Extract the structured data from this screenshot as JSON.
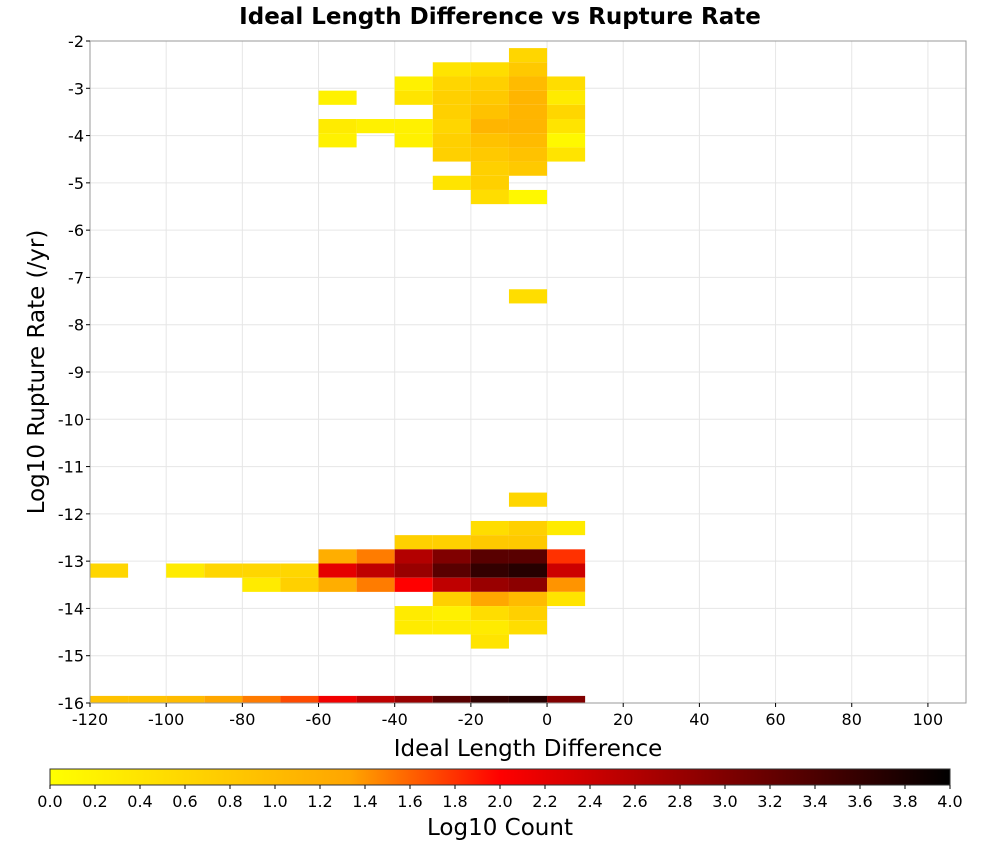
{
  "chart_data": {
    "type": "heatmap",
    "title": "Ideal Length Difference vs Rupture Rate",
    "xlabel": "Ideal Length Difference",
    "ylabel": "Log10 Rupture Rate (/yr)",
    "colorbar_label": "Log10 Count",
    "xlim": [
      -120,
      110
    ],
    "ylim": [
      -16,
      -2
    ],
    "x_ticks": [
      "-120",
      "-100",
      "-80",
      "-60",
      "-40",
      "-20",
      "0",
      "20",
      "40",
      "60",
      "80",
      "100"
    ],
    "x_tick_values": [
      -120,
      -100,
      -80,
      -60,
      -40,
      -20,
      0,
      20,
      40,
      60,
      80,
      100
    ],
    "y_ticks": [
      "-2",
      "-3",
      "-4",
      "-5",
      "-6",
      "-7",
      "-8",
      "-9",
      "-10",
      "-11",
      "-12",
      "-13",
      "-14",
      "-15",
      "-16"
    ],
    "y_tick_values": [
      -2,
      -3,
      -4,
      -5,
      -6,
      -7,
      -8,
      -9,
      -10,
      -11,
      -12,
      -13,
      -14,
      -15,
      -16
    ],
    "colorbar_ticks": [
      "0.0",
      "0.2",
      "0.4",
      "0.6",
      "0.8",
      "1.0",
      "1.2",
      "1.4",
      "1.6",
      "1.8",
      "2.0",
      "2.2",
      "2.4",
      "2.6",
      "2.8",
      "3.0",
      "3.2",
      "3.4",
      "3.6",
      "3.8",
      "4.0"
    ],
    "colorbar_range": [
      0,
      4
    ],
    "colorscale": [
      "#ffff00",
      "#ffa500",
      "#ff0000",
      "#000000"
    ],
    "grid": true,
    "bin_width": 10,
    "y_bin_height": 0.3,
    "cells": [
      {
        "x": -10,
        "y": -2.3,
        "v": 0.6
      },
      {
        "x": -30,
        "y": -2.6,
        "v": 0.4
      },
      {
        "x": -20,
        "y": -2.6,
        "v": 0.5
      },
      {
        "x": -10,
        "y": -2.6,
        "v": 0.8
      },
      {
        "x": -40,
        "y": -2.9,
        "v": 0.2
      },
      {
        "x": -30,
        "y": -2.9,
        "v": 0.6
      },
      {
        "x": -20,
        "y": -2.9,
        "v": 0.7
      },
      {
        "x": -10,
        "y": -2.9,
        "v": 1.0
      },
      {
        "x": 0,
        "y": -2.9,
        "v": 0.5
      },
      {
        "x": -60,
        "y": -3.2,
        "v": 0.2
      },
      {
        "x": -40,
        "y": -3.2,
        "v": 0.4
      },
      {
        "x": -30,
        "y": -3.2,
        "v": 0.7
      },
      {
        "x": -20,
        "y": -3.2,
        "v": 0.8
      },
      {
        "x": -10,
        "y": -3.2,
        "v": 1.1
      },
      {
        "x": 0,
        "y": -3.2,
        "v": 0.3
      },
      {
        "x": -30,
        "y": -3.5,
        "v": 0.7
      },
      {
        "x": -20,
        "y": -3.5,
        "v": 0.9
      },
      {
        "x": -10,
        "y": -3.5,
        "v": 1.1
      },
      {
        "x": 0,
        "y": -3.5,
        "v": 0.6
      },
      {
        "x": -60,
        "y": -3.8,
        "v": 0.3
      },
      {
        "x": -50,
        "y": -3.8,
        "v": 0.2
      },
      {
        "x": -40,
        "y": -3.8,
        "v": 0.2
      },
      {
        "x": -30,
        "y": -3.8,
        "v": 0.6
      },
      {
        "x": -20,
        "y": -3.8,
        "v": 1.1
      },
      {
        "x": -10,
        "y": -3.8,
        "v": 1.1
      },
      {
        "x": 0,
        "y": -3.8,
        "v": 0.4
      },
      {
        "x": -60,
        "y": -4.1,
        "v": 0.2
      },
      {
        "x": -40,
        "y": -4.1,
        "v": 0.2
      },
      {
        "x": -30,
        "y": -4.1,
        "v": 0.7
      },
      {
        "x": -20,
        "y": -4.1,
        "v": 0.9
      },
      {
        "x": -10,
        "y": -4.1,
        "v": 1.0
      },
      {
        "x": 0,
        "y": -4.1,
        "v": 0.1
      },
      {
        "x": -30,
        "y": -4.4,
        "v": 0.7
      },
      {
        "x": -20,
        "y": -4.4,
        "v": 0.8
      },
      {
        "x": -10,
        "y": -4.4,
        "v": 0.9
      },
      {
        "x": 0,
        "y": -4.4,
        "v": 0.4
      },
      {
        "x": -10,
        "y": -4.7,
        "v": 0.8
      },
      {
        "x": -20,
        "y": -4.7,
        "v": 0.7
      },
      {
        "x": -30,
        "y": -5.0,
        "v": 0.4
      },
      {
        "x": -20,
        "y": -5.0,
        "v": 0.7
      },
      {
        "x": -20,
        "y": -5.3,
        "v": 0.5
      },
      {
        "x": -10,
        "y": -5.3,
        "v": 0.1
      },
      {
        "x": -10,
        "y": -7.4,
        "v": 0.5
      },
      {
        "x": -10,
        "y": -11.7,
        "v": 0.6
      },
      {
        "x": -20,
        "y": -12.3,
        "v": 0.5
      },
      {
        "x": -10,
        "y": -12.3,
        "v": 0.7
      },
      {
        "x": 0,
        "y": -12.3,
        "v": 0.3
      },
      {
        "x": -40,
        "y": -12.6,
        "v": 0.7
      },
      {
        "x": -30,
        "y": -12.6,
        "v": 0.7
      },
      {
        "x": -20,
        "y": -12.6,
        "v": 0.8
      },
      {
        "x": -10,
        "y": -12.6,
        "v": 0.8
      },
      {
        "x": -60,
        "y": -12.9,
        "v": 1.2
      },
      {
        "x": -50,
        "y": -12.9,
        "v": 1.5
      },
      {
        "x": -40,
        "y": -12.9,
        "v": 2.6
      },
      {
        "x": -30,
        "y": -12.9,
        "v": 3.0
      },
      {
        "x": -20,
        "y": -12.9,
        "v": 3.3
      },
      {
        "x": -10,
        "y": -12.9,
        "v": 3.3
      },
      {
        "x": 0,
        "y": -12.9,
        "v": 1.8
      },
      {
        "x": -120,
        "y": -13.2,
        "v": 0.6
      },
      {
        "x": -100,
        "y": -13.2,
        "v": 0.3
      },
      {
        "x": -90,
        "y": -13.2,
        "v": 0.6
      },
      {
        "x": -80,
        "y": -13.2,
        "v": 0.6
      },
      {
        "x": -70,
        "y": -13.2,
        "v": 0.6
      },
      {
        "x": -60,
        "y": -13.2,
        "v": 2.2
      },
      {
        "x": -50,
        "y": -13.2,
        "v": 2.5
      },
      {
        "x": -40,
        "y": -13.2,
        "v": 2.8
      },
      {
        "x": -30,
        "y": -13.2,
        "v": 3.3
      },
      {
        "x": -20,
        "y": -13.2,
        "v": 3.6
      },
      {
        "x": -10,
        "y": -13.2,
        "v": 3.7
      },
      {
        "x": 0,
        "y": -13.2,
        "v": 2.4
      },
      {
        "x": -80,
        "y": -13.5,
        "v": 0.3
      },
      {
        "x": -70,
        "y": -13.5,
        "v": 0.7
      },
      {
        "x": -60,
        "y": -13.5,
        "v": 1.2
      },
      {
        "x": -50,
        "y": -13.5,
        "v": 1.5
      },
      {
        "x": -40,
        "y": -13.5,
        "v": 2.0
      },
      {
        "x": -30,
        "y": -13.5,
        "v": 2.5
      },
      {
        "x": -20,
        "y": -13.5,
        "v": 2.8
      },
      {
        "x": -10,
        "y": -13.5,
        "v": 2.9
      },
      {
        "x": 0,
        "y": -13.5,
        "v": 1.4
      },
      {
        "x": -30,
        "y": -13.8,
        "v": 0.7
      },
      {
        "x": -20,
        "y": -13.8,
        "v": 1.3
      },
      {
        "x": -10,
        "y": -13.8,
        "v": 1.0
      },
      {
        "x": 0,
        "y": -13.8,
        "v": 0.4
      },
      {
        "x": -40,
        "y": -14.1,
        "v": 0.3
      },
      {
        "x": -30,
        "y": -14.1,
        "v": 0.2
      },
      {
        "x": -20,
        "y": -14.1,
        "v": 0.5
      },
      {
        "x": -10,
        "y": -14.1,
        "v": 0.7
      },
      {
        "x": -40,
        "y": -14.4,
        "v": 0.3
      },
      {
        "x": -30,
        "y": -14.4,
        "v": 0.3
      },
      {
        "x": -20,
        "y": -14.4,
        "v": 0.3
      },
      {
        "x": -10,
        "y": -14.4,
        "v": 0.5
      },
      {
        "x": -20,
        "y": -14.7,
        "v": 0.4
      },
      {
        "x": -120,
        "y": -16.0,
        "v": 0.9
      },
      {
        "x": -110,
        "y": -16.0,
        "v": 0.9
      },
      {
        "x": -100,
        "y": -16.0,
        "v": 1.0
      },
      {
        "x": -90,
        "y": -16.0,
        "v": 1.3
      },
      {
        "x": -80,
        "y": -16.0,
        "v": 1.5
      },
      {
        "x": -70,
        "y": -16.0,
        "v": 1.7
      },
      {
        "x": -60,
        "y": -16.0,
        "v": 2.1
      },
      {
        "x": -50,
        "y": -16.0,
        "v": 2.5
      },
      {
        "x": -40,
        "y": -16.0,
        "v": 2.8
      },
      {
        "x": -30,
        "y": -16.0,
        "v": 3.3
      },
      {
        "x": -20,
        "y": -16.0,
        "v": 3.6
      },
      {
        "x": -10,
        "y": -16.0,
        "v": 3.7
      },
      {
        "x": 0,
        "y": -16.0,
        "v": 3.0
      }
    ]
  }
}
